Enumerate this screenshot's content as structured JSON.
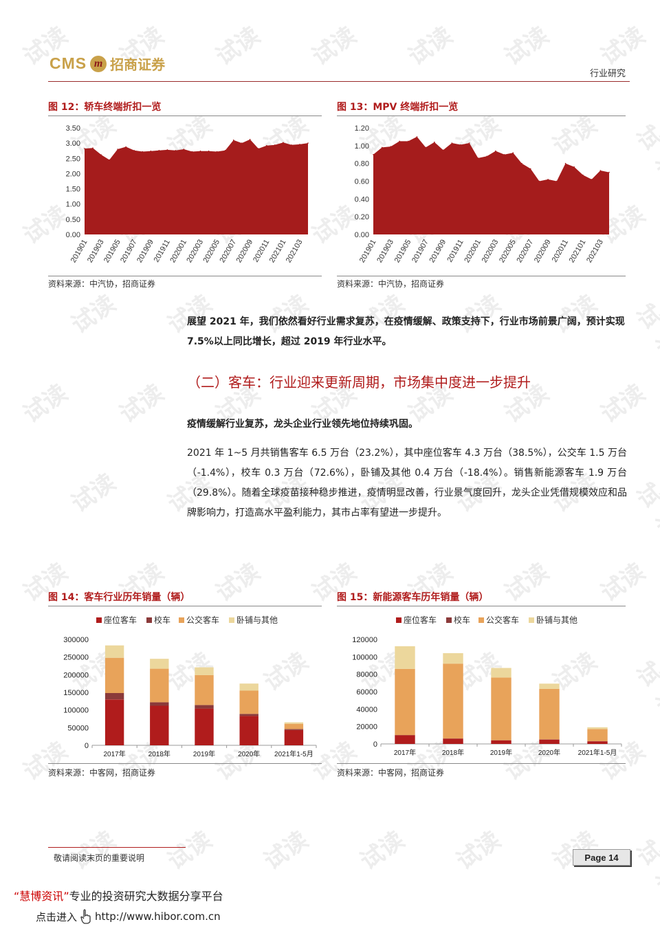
{
  "header": {
    "logo_cms": "CMS",
    "logo_mark": "m",
    "logo_cn": "招商证券",
    "category": "行业研究"
  },
  "watermark_text": "试读",
  "figures": {
    "fig12": {
      "title": "图 12：轿车终端折扣一览",
      "source": "资料来源：中汽协，招商证券"
    },
    "fig13": {
      "title": "图 13：MPV 终端折扣一览",
      "source": "资料来源：中汽协，招商证券"
    },
    "fig14": {
      "title": "图 14：客车行业历年销量（辆）",
      "source": "资料来源：中客网，招商证券"
    },
    "fig15": {
      "title": "图 15：新能源客车历年销量（辆）",
      "source": "资料来源：中客网，招商证券"
    }
  },
  "body": {
    "para1_bold": "展望 2021 年，我们依然看好行业需求复苏，在疫情缓解、政策支持下，行业市场前景广阔，预计实现 7.5%以上同比增长，超过 2019 年行业水平。",
    "section_title": "（二）客车：行业迎来更新周期，市场集中度进一步提升",
    "para2_bold": "疫情缓解行业复苏，龙头企业行业领先地位持续巩固。",
    "para3": "2021 年 1~5 月共销售客车 6.5 万台（23.2%），其中座位客车 4.3 万台（38.5%），公交车 1.5 万台（-1.4%），校车 0.3 万台（72.6%），卧铺及其他 0.4 万台（-18.4%）。销售新能源客车 1.9 万台（29.8%）。随着全球疫苗接种稳步推进，疫情明显改善，行业景气度回升，龙头企业凭借规模效应和品牌影响力，打造高水平盈利能力，其市占率有望进一步提升。"
  },
  "footer": {
    "note": "敬请阅读末页的重要说明",
    "page": "Page 14",
    "promo_quote_open": "“",
    "promo_brand": "慧博资讯",
    "promo_quote_close": "”",
    "promo_text": "专业的投资研究大数据分享平台",
    "promo_link_label": "点击进入",
    "promo_url": "http://www.hibor.com.cn"
  },
  "chart_data": [
    {
      "type": "area",
      "id": "fig12",
      "x": [
        "201901",
        "201902",
        "201903",
        "201904",
        "201905",
        "201906",
        "201907",
        "201908",
        "201909",
        "201910",
        "201911",
        "201912",
        "202001",
        "202002",
        "202003",
        "202004",
        "202005",
        "202006",
        "202007",
        "202008",
        "202009",
        "202010",
        "202011",
        "202012",
        "202101",
        "202102",
        "202103",
        "202104"
      ],
      "xtick_labels": [
        "201901",
        "201903",
        "201905",
        "201907",
        "201909",
        "201911",
        "202001",
        "202003",
        "202005",
        "202007",
        "202009",
        "202011",
        "202101",
        "202103"
      ],
      "values": [
        2.82,
        2.84,
        2.62,
        2.45,
        2.8,
        2.88,
        2.76,
        2.72,
        2.74,
        2.76,
        2.78,
        2.76,
        2.8,
        2.72,
        2.74,
        2.74,
        2.72,
        2.76,
        3.1,
        3.0,
        3.12,
        2.82,
        2.92,
        2.94,
        3.02,
        2.94,
        2.96,
        3.0
      ],
      "yticks": [
        "3.50",
        "3.00",
        "2.50",
        "2.00",
        "1.50",
        "1.00",
        "0.50",
        "0.00"
      ],
      "ylim": [
        0,
        3.5
      ],
      "color": "#a51c1c"
    },
    {
      "type": "area",
      "id": "fig13",
      "x": [
        "201901",
        "201902",
        "201903",
        "201904",
        "201905",
        "201906",
        "201907",
        "201908",
        "201909",
        "201910",
        "201911",
        "201912",
        "202001",
        "202002",
        "202003",
        "202004",
        "202005",
        "202006",
        "202007",
        "202008",
        "202009",
        "202010",
        "202011",
        "202012",
        "202101",
        "202102",
        "202103",
        "202104"
      ],
      "xtick_labels": [
        "201901",
        "201903",
        "201905",
        "201907",
        "201909",
        "201911",
        "202001",
        "202003",
        "202005",
        "202007",
        "202009",
        "202011",
        "202101",
        "202103"
      ],
      "values": [
        0.9,
        0.98,
        0.99,
        1.05,
        1.05,
        1.1,
        0.98,
        1.04,
        0.95,
        1.03,
        1.01,
        1.03,
        0.86,
        0.88,
        0.94,
        0.9,
        0.92,
        0.8,
        0.74,
        0.6,
        0.62,
        0.6,
        0.8,
        0.76,
        0.67,
        0.62,
        0.72,
        0.7
      ],
      "yticks": [
        "1.20",
        "1.00",
        "0.80",
        "0.60",
        "0.40",
        "0.20",
        "0.00"
      ],
      "ylim": [
        0,
        1.2
      ],
      "color": "#a51c1c"
    },
    {
      "type": "bar",
      "stacked": true,
      "id": "fig14",
      "categories": [
        "2017年",
        "2018年",
        "2019年",
        "2020年",
        "2021年1-5月"
      ],
      "series": [
        {
          "name": "座位客车",
          "color": "#b01c1c",
          "values": [
            130000,
            112000,
            104000,
            83000,
            43000
          ]
        },
        {
          "name": "校车",
          "color": "#8b3a3a",
          "values": [
            18000,
            10000,
            10000,
            6000,
            3000
          ]
        },
        {
          "name": "公交客车",
          "color": "#e8a35a",
          "values": [
            100000,
            95000,
            85000,
            66000,
            15000
          ]
        },
        {
          "name": "卧铺与其他",
          "color": "#ecd79c",
          "values": [
            35000,
            28000,
            22000,
            20000,
            4000
          ]
        }
      ],
      "yticks": [
        "300000",
        "250000",
        "200000",
        "150000",
        "100000",
        "50000",
        "0"
      ],
      "ylim": [
        0,
        300000
      ],
      "legend": "top"
    },
    {
      "type": "bar",
      "stacked": true,
      "id": "fig15",
      "categories": [
        "2017年",
        "2018年",
        "2019年",
        "2020年",
        "2021年1-5月"
      ],
      "series": [
        {
          "name": "座位客车",
          "color": "#b01c1c",
          "values": [
            10000,
            6000,
            4000,
            5000,
            3000
          ]
        },
        {
          "name": "校车",
          "color": "#8b3a3a",
          "values": [
            200,
            200,
            200,
            200,
            100
          ]
        },
        {
          "name": "公交客车",
          "color": "#e8a35a",
          "values": [
            76000,
            86000,
            72000,
            58000,
            14000
          ]
        },
        {
          "name": "卧铺与其他",
          "color": "#ecd79c",
          "values": [
            26000,
            12000,
            11000,
            6000,
            2000
          ]
        }
      ],
      "yticks": [
        "120000",
        "100000",
        "80000",
        "60000",
        "40000",
        "20000",
        "0"
      ],
      "ylim": [
        0,
        120000
      ],
      "legend": "top"
    }
  ]
}
